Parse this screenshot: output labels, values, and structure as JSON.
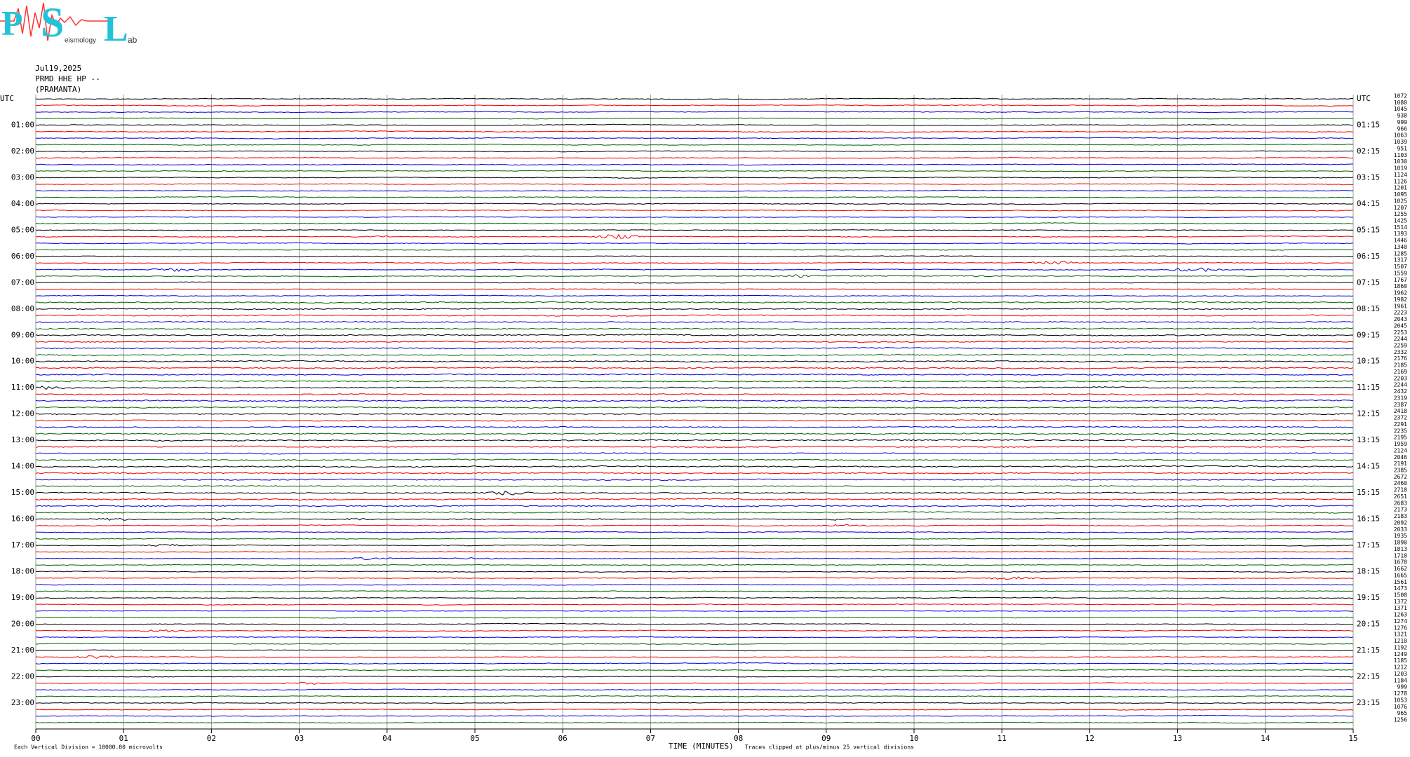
{
  "logo": {
    "letters": [
      "P",
      "S",
      "L"
    ],
    "subtitle": "eismology",
    "lab": "ab"
  },
  "header": {
    "date": "Jul19,2025",
    "station": "PRMD HHE HP --",
    "location": "(PRAMANTA)"
  },
  "left_labels": [
    "UTC",
    "01:00",
    "02:00",
    "03:00",
    "04:00",
    "05:00",
    "06:00",
    "07:00",
    "08:00",
    "09:00",
    "10:00",
    "11:00",
    "12:00",
    "13:00",
    "14:00",
    "15:00",
    "16:00",
    "17:00",
    "18:00",
    "19:00",
    "20:00",
    "21:00",
    "22:00",
    "23:00"
  ],
  "right_labels": [
    "UTC",
    "01:15",
    "02:15",
    "03:15",
    "04:15",
    "05:15",
    "06:15",
    "07:15",
    "08:15",
    "09:15",
    "10:15",
    "11:15",
    "12:15",
    "13:15",
    "14:15",
    "15:15",
    "16:15",
    "17:15",
    "18:15",
    "19:15",
    "20:15",
    "21:15",
    "22:15",
    "23:15"
  ],
  "trace_values": [
    1072,
    1080,
    1045,
    938,
    999,
    966,
    1063,
    1039,
    951,
    1103,
    1030,
    1019,
    1124,
    1126,
    1201,
    1095,
    1025,
    1207,
    1255,
    1425,
    1514,
    1393,
    1446,
    1340,
    1285,
    1317,
    1507,
    1559,
    1767,
    1860,
    1962,
    1982,
    1961,
    2223,
    2043,
    2045,
    2253,
    2244,
    2259,
    2332,
    2176,
    2185,
    2169,
    2203,
    2244,
    2432,
    2319,
    2387,
    2418,
    2372,
    2291,
    2235,
    2195,
    1959,
    2124,
    2046,
    2191,
    2385,
    2672,
    2460,
    2718,
    2651,
    2683,
    2173,
    2183,
    2092,
    2033,
    1935,
    1890,
    1813,
    1718,
    1678,
    1662,
    1665,
    1561,
    1473,
    1508,
    1372,
    1371,
    1263,
    1274,
    1276,
    1321,
    1210,
    1192,
    1249,
    1185,
    1212,
    1203,
    1184,
    999,
    1278,
    1053,
    1076,
    965,
    1256
  ],
  "x_ticks": [
    "00",
    "01",
    "02",
    "03",
    "04",
    "05",
    "06",
    "07",
    "08",
    "09",
    "10",
    "11",
    "12",
    "13",
    "14",
    "15"
  ],
  "footer": {
    "division": "Each Vertical Division = 10000.00 microvolts",
    "axis_title": "TIME (MINUTES)",
    "clip_note": "Traces clipped at plus/minus 25 vertical divisions"
  }
}
